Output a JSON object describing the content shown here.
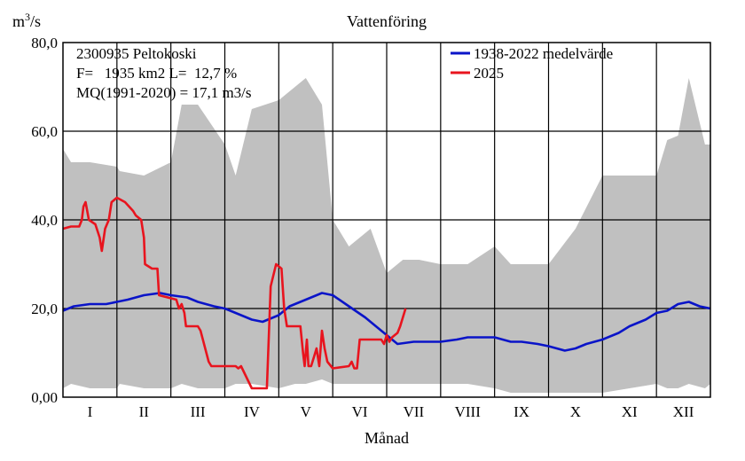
{
  "chart_data": {
    "type": "line",
    "title": "Vattenföring",
    "ylabel_base": "m",
    "ylabel_exp": "3",
    "ylabel_tail": "/s",
    "xlabel": "Månad",
    "ylim": [
      0,
      80
    ],
    "yticks": [
      "0,00",
      "20,0",
      "40,0",
      "60,0",
      "80,0"
    ],
    "ytick_values": [
      0,
      20,
      40,
      60,
      80
    ],
    "months": [
      "I",
      "II",
      "III",
      "IV",
      "V",
      "VI",
      "VII",
      "VIII",
      "IX",
      "X",
      "XI",
      "XII"
    ],
    "grid": true,
    "info": {
      "station": "2300935 Peltokoski",
      "area": "F=   1935 km2 L=  12,7 %",
      "mq": "MQ(1991-2020) = 17,1 m3/s"
    },
    "legend_position": "top-right",
    "colors": {
      "mean": "#0a14c8",
      "current": "#e8141e",
      "range": "#c0c0c0"
    },
    "range_band": {
      "name": "",
      "x": [
        0,
        0.15,
        0.5,
        1.0,
        1.05,
        1.5,
        2.0,
        2.2,
        2.5,
        3.0,
        3.2,
        3.5,
        4.0,
        4.3,
        4.5,
        4.8,
        5.0,
        5.3,
        5.7,
        6.0,
        6.3,
        6.6,
        7.0,
        7.5,
        8.0,
        8.3,
        8.7,
        9.0,
        9.5,
        10.0,
        10.5,
        11.0,
        11.2,
        11.4,
        11.6,
        11.9,
        12.0
      ],
      "max": [
        56,
        53,
        53,
        52,
        51,
        50,
        53,
        66,
        66,
        57,
        50,
        65,
        67,
        70,
        72,
        66,
        40,
        34,
        38,
        28,
        31,
        31,
        30,
        30,
        34,
        30,
        30,
        30,
        38,
        50,
        50,
        50,
        58,
        59,
        72,
        57,
        57
      ],
      "min": [
        2,
        3,
        2,
        2,
        3,
        2,
        2,
        3,
        2,
        2,
        3,
        3,
        2,
        3,
        3,
        4,
        3,
        3,
        3,
        3,
        3,
        3,
        3,
        3,
        2,
        1,
        1,
        1,
        1,
        1,
        2,
        3,
        2,
        2,
        3,
        2,
        3
      ]
    },
    "series": [
      {
        "name": "1938-2022 medelvärde",
        "x": [
          0,
          0.2,
          0.5,
          0.8,
          1.0,
          1.2,
          1.5,
          1.8,
          2.0,
          2.3,
          2.5,
          2.8,
          3.0,
          3.2,
          3.5,
          3.7,
          4.0,
          4.2,
          4.5,
          4.8,
          5.0,
          5.3,
          5.6,
          5.8,
          6.0,
          6.2,
          6.5,
          6.8,
          7.0,
          7.3,
          7.5,
          7.8,
          8.0,
          8.3,
          8.5,
          8.8,
          9.0,
          9.3,
          9.5,
          9.7,
          10.0,
          10.3,
          10.5,
          10.8,
          11.0,
          11.2,
          11.4,
          11.6,
          11.8,
          12.0
        ],
        "y": [
          19.5,
          20.5,
          21,
          21,
          21.5,
          22,
          23,
          23.5,
          23,
          22.5,
          21.5,
          20.5,
          20,
          19,
          17.5,
          17,
          18.5,
          20.5,
          22,
          23.5,
          23,
          20.5,
          18,
          16,
          14,
          12,
          12.5,
          12.5,
          12.5,
          13,
          13.5,
          13.5,
          13.5,
          12.5,
          12.5,
          12,
          11.5,
          10.5,
          11,
          12,
          13,
          14.5,
          16,
          17.5,
          19,
          19.5,
          21,
          21.5,
          20.5,
          20
        ]
      },
      {
        "name": "2025",
        "x": [
          0,
          0.15,
          0.3,
          0.35,
          0.38,
          0.42,
          0.48,
          0.6,
          0.68,
          0.72,
          0.78,
          0.85,
          0.9,
          1.0,
          1.15,
          1.3,
          1.35,
          1.45,
          1.5,
          1.52,
          1.65,
          1.75,
          1.78,
          2.1,
          2.15,
          2.2,
          2.25,
          2.28,
          2.5,
          2.55,
          2.7,
          2.75,
          2.8,
          2.85,
          3.0,
          3.2,
          3.25,
          3.3,
          3.5,
          3.6,
          3.65,
          3.72,
          3.78,
          3.85,
          3.95,
          4.05,
          4.1,
          4.15,
          4.2,
          4.22,
          4.4,
          4.45,
          4.48,
          4.52,
          4.55,
          4.6,
          4.65,
          4.7,
          4.75,
          4.8,
          4.85,
          4.9,
          5.0,
          5.3,
          5.35,
          5.4,
          5.45,
          5.5,
          5.55,
          5.6,
          5.9,
          5.95,
          6.0,
          6.05,
          6.1,
          6.15,
          6.2,
          6.25,
          6.35
        ],
        "y": [
          38,
          38.5,
          38.5,
          40,
          43,
          44,
          40,
          39,
          36,
          33,
          38,
          40,
          44,
          45,
          44,
          42,
          41,
          40,
          36,
          30,
          29,
          29,
          23,
          22,
          20,
          21,
          19,
          16,
          16,
          15,
          8,
          7,
          7,
          7,
          7,
          7,
          6.5,
          7,
          2,
          2,
          2,
          2,
          2,
          25,
          30,
          29,
          20,
          16,
          16,
          16,
          16,
          10,
          7,
          13,
          7,
          7,
          9,
          11,
          7,
          15,
          11,
          8,
          6.5,
          7,
          8,
          6.5,
          6.5,
          13,
          13,
          13,
          13,
          12,
          14,
          12.5,
          13.5,
          14,
          14.5,
          16,
          20
        ]
      }
    ]
  }
}
